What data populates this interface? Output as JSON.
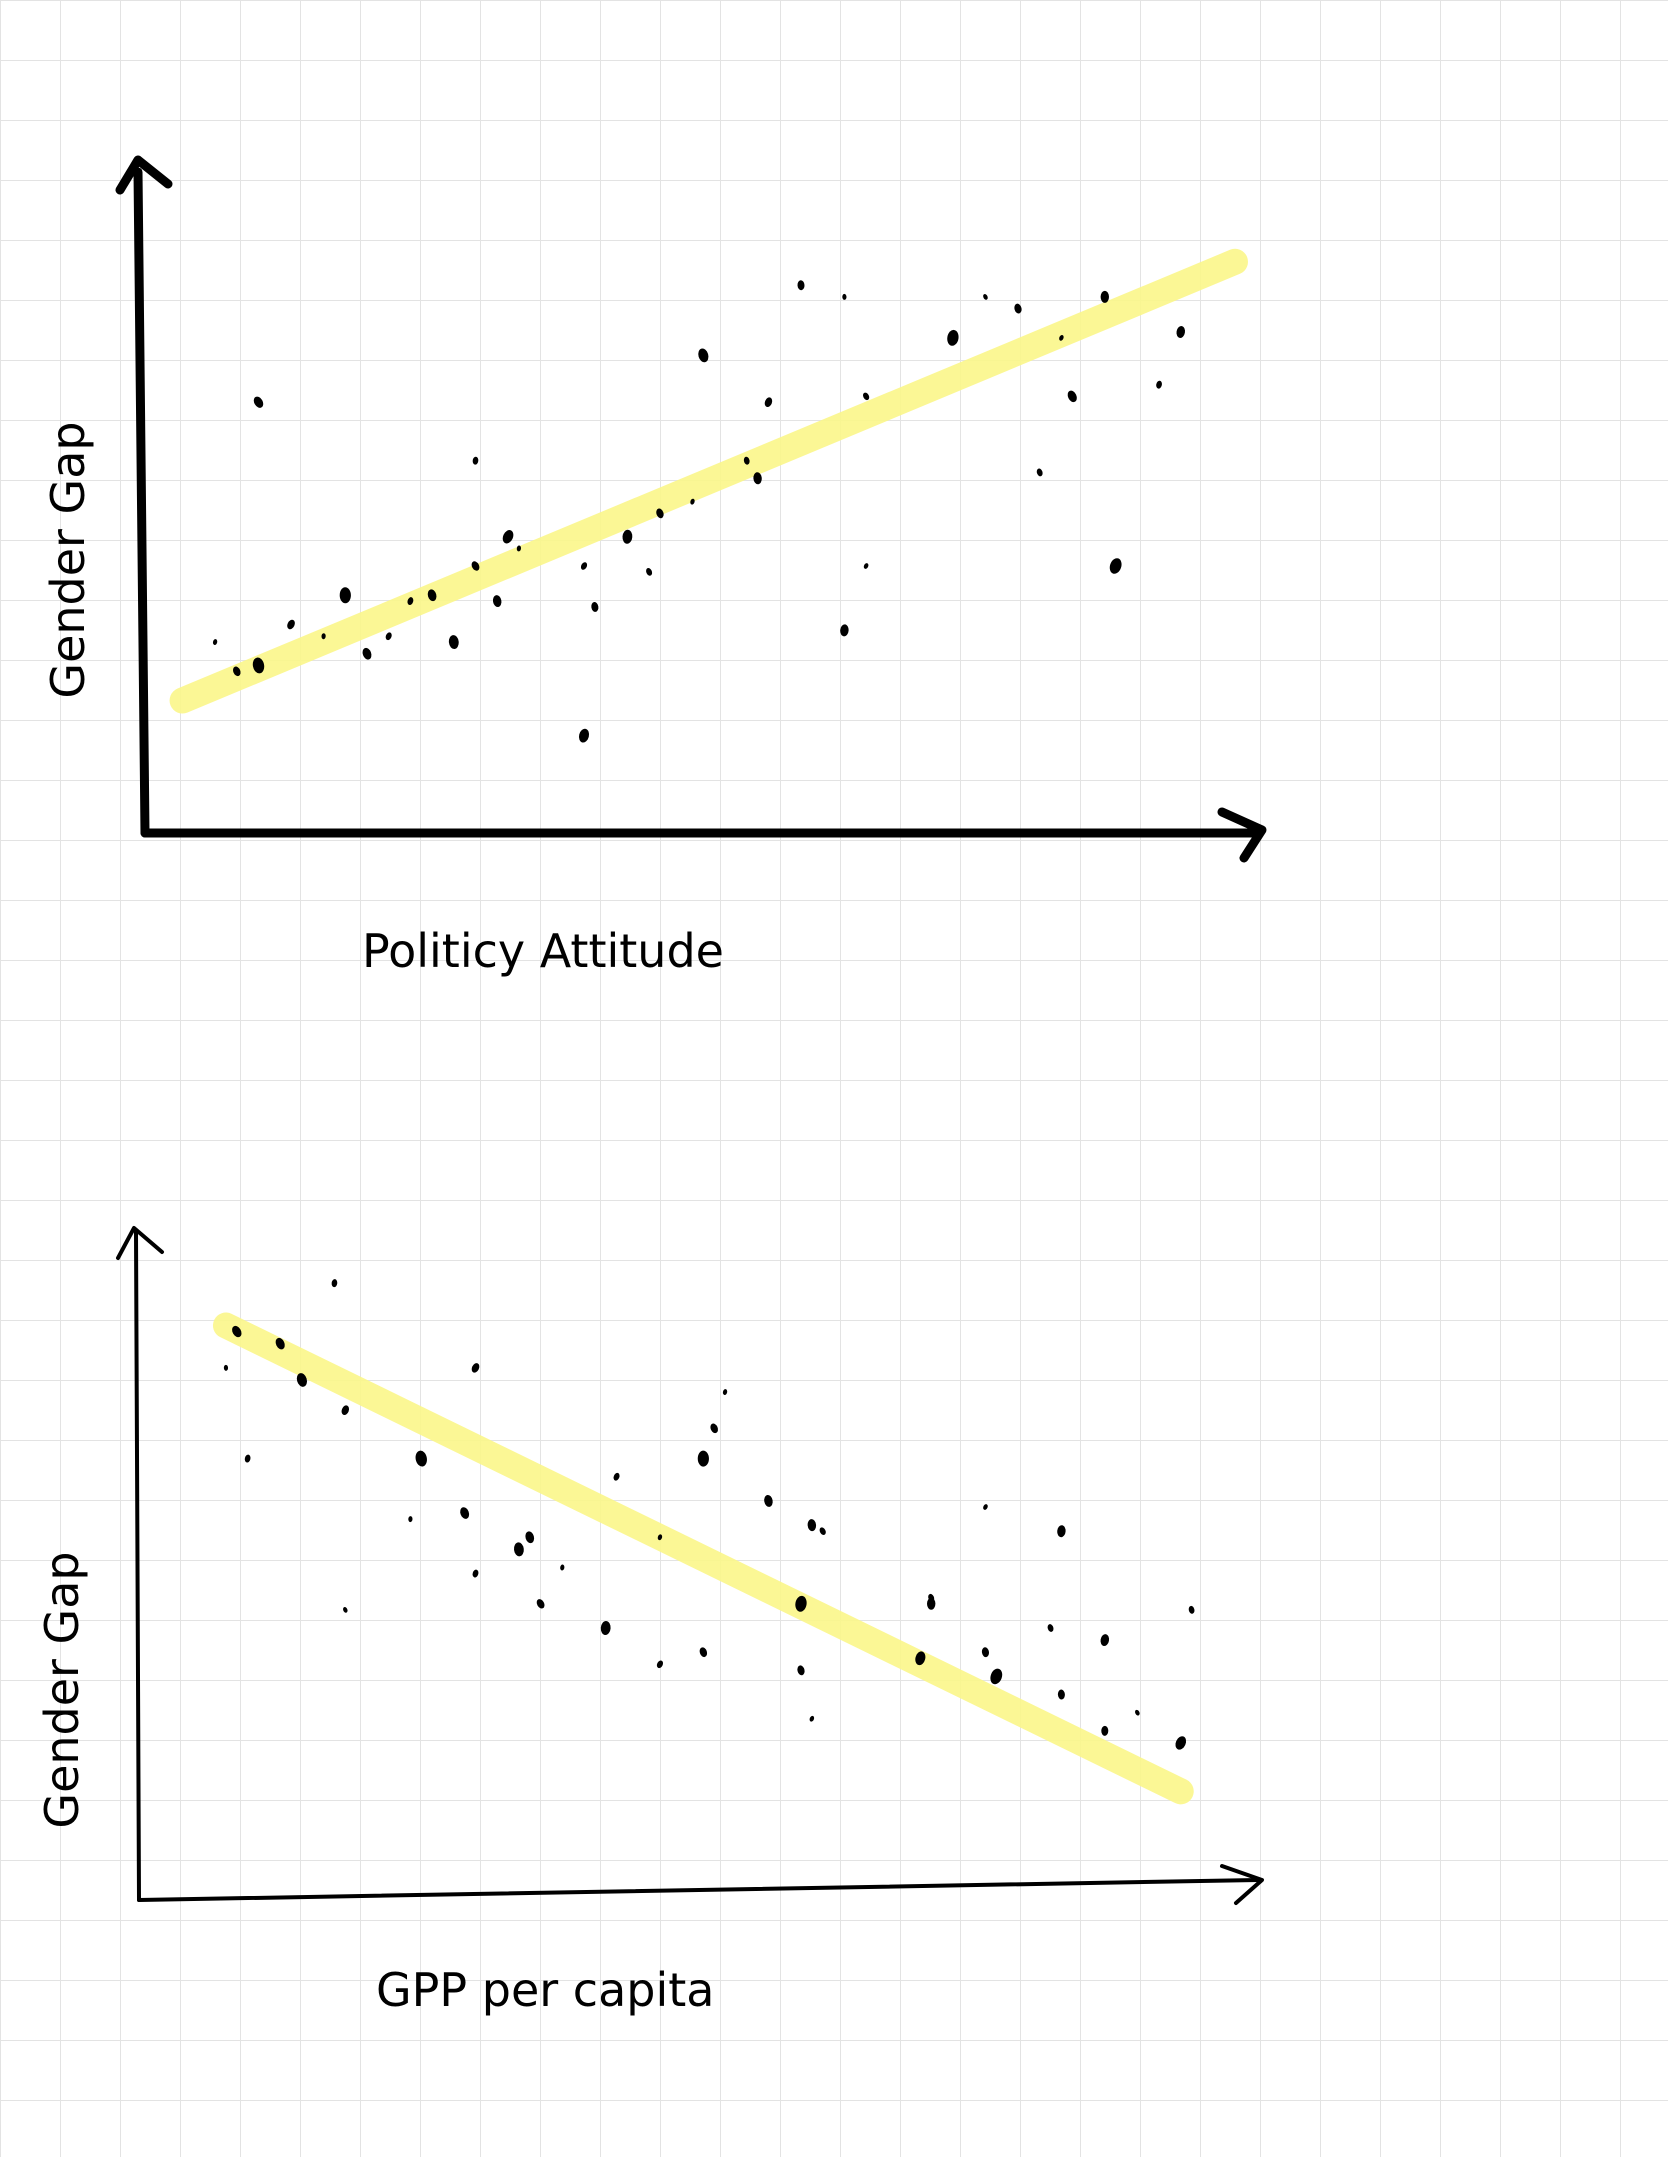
{
  "chart_data": [
    {
      "type": "scatter",
      "title": "",
      "xlabel": "Politicy Attitude",
      "ylabel": "Gender Gap",
      "xlim": [
        0,
        100
      ],
      "ylim": [
        0,
        100
      ],
      "grid": false,
      "trend_line": {
        "from": [
          3,
          17
        ],
        "to": [
          100,
          92
        ],
        "color": "#fbf78a"
      },
      "points": [
        [
          10,
          68
        ],
        [
          30,
          58
        ],
        [
          51,
          76
        ],
        [
          57,
          68
        ],
        [
          64,
          86
        ],
        [
          85,
          69
        ],
        [
          93,
          71
        ],
        [
          10,
          23
        ],
        [
          13,
          30
        ],
        [
          16,
          28
        ],
        [
          20,
          25
        ],
        [
          24,
          34
        ],
        [
          28,
          27
        ],
        [
          30,
          40
        ],
        [
          34,
          43
        ],
        [
          26,
          35
        ],
        [
          22,
          28
        ],
        [
          18,
          35
        ],
        [
          8,
          22
        ],
        [
          6,
          27
        ],
        [
          32,
          34
        ],
        [
          40,
          40
        ],
        [
          44,
          45
        ],
        [
          47,
          49
        ],
        [
          50,
          51
        ],
        [
          56,
          55
        ],
        [
          66,
          69
        ],
        [
          74,
          79
        ],
        [
          80,
          84
        ],
        [
          84,
          79
        ],
        [
          88,
          86
        ],
        [
          46,
          39
        ],
        [
          40,
          11
        ],
        [
          41,
          33
        ],
        [
          66,
          40
        ],
        [
          64,
          29
        ],
        [
          82,
          56
        ],
        [
          89,
          40
        ],
        [
          60,
          88
        ],
        [
          77,
          86
        ],
        [
          95,
          80
        ],
        [
          55,
          58
        ],
        [
          33,
          45
        ]
      ]
    },
    {
      "type": "scatter",
      "title": "",
      "xlabel": "GPP per capita",
      "ylabel": "Gender Gap",
      "xlim": [
        0,
        100
      ],
      "ylim": [
        0,
        100
      ],
      "grid": false,
      "trend_line": {
        "from": [
          7,
          90
        ],
        "to": [
          95,
          13
        ],
        "color": "#fbf78a"
      },
      "points": [
        [
          8,
          89
        ],
        [
          17,
          97
        ],
        [
          14,
          81
        ],
        [
          18,
          76
        ],
        [
          7,
          83
        ],
        [
          12,
          87
        ],
        [
          9,
          68
        ],
        [
          25,
          68
        ],
        [
          30,
          83
        ],
        [
          24,
          58
        ],
        [
          29,
          59
        ],
        [
          30,
          49
        ],
        [
          34,
          53
        ],
        [
          36,
          44
        ],
        [
          38,
          50
        ],
        [
          35,
          55
        ],
        [
          43,
          65
        ],
        [
          51,
          68
        ],
        [
          52,
          73
        ],
        [
          53,
          79
        ],
        [
          57,
          61
        ],
        [
          47,
          34
        ],
        [
          42,
          40
        ],
        [
          51,
          36
        ],
        [
          47,
          55
        ],
        [
          61,
          57
        ],
        [
          62,
          56
        ],
        [
          60,
          44
        ],
        [
          60,
          33
        ],
        [
          61,
          25
        ],
        [
          72,
          44
        ],
        [
          72,
          45
        ],
        [
          71,
          35
        ],
        [
          77,
          36
        ],
        [
          77,
          60
        ],
        [
          84,
          56
        ],
        [
          83,
          40
        ],
        [
          78,
          32
        ],
        [
          84,
          29
        ],
        [
          91,
          26
        ],
        [
          88,
          38
        ],
        [
          96,
          43
        ],
        [
          95,
          21
        ],
        [
          88,
          23
        ],
        [
          18,
          43
        ]
      ]
    }
  ]
}
